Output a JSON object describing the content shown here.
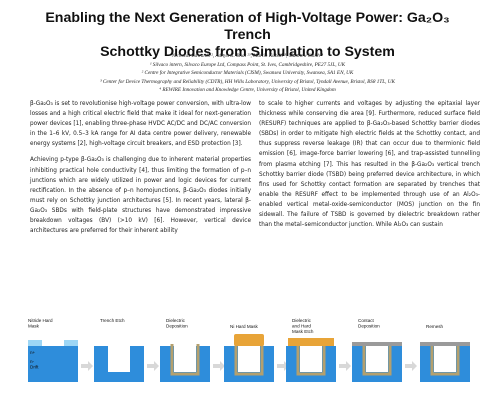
{
  "paper": {
    "title_line1": "Enabling the Next Generation of High-Voltage Power: Ga₂O₃ Trench",
    "title_line2": "Schottky Diodes from Simulation to System",
    "authors": "Nicholas Edwards¹², Aditya K. Bhat ²³, Martin Kuball²³, Matthew Smith²⁴",
    "affiliations": [
      "¹ Silvaco intern, Silvaco Europe Ltd, Compass Point, St. Ives, Cambridgeshire, PE27 5JL, UK",
      "² Centre for Integrative Semiconductor Materials (CISM), Swansea University, Swansea, SA1 EN, UK",
      "³ Center for Device Thermography and Reliability (CDTR), HH Wills Laboratory, University of Bristol, Tyndall Avenue, Bristol, BS8 1TL, UK",
      "⁴ REWIRE Innovation and Knowledge Centre, University of Bristol, United Kingdom"
    ],
    "left_column": [
      "β-Ga₂O₃ is set to revolutionise high-voltage power conversion, with ultra-low losses and a high critical electric field that make it ideal for next-generation power devices [1], enabling three-phase HVDC AC/DC and DC/AC conversion in the 1–6 kV, 0.5–3 kA range for AI data centre power delivery, renewable energy systems [2], high-voltage circuit breakers, and ESD protection [3].",
      "Achieving p-type β-Ga₂O₃ is challenging due to inherent material properties inhibiting practical hole conductivity [4], thus limiting the formation of p–n junctions which are widely utilized in power and logic devices for current rectification. In the absence of p–n homojunctions, β-Ga₂O₃ diodes initially must rely on Schottky junction architectures [5]. In recent years, lateral β-Ga₂O₃ SBDs with field-plate structures have demonstrated impressive breakdown voltages (BV) (>10 kV) [6]. However, vertical device architectures are preferred for their inherent ability"
    ],
    "right_column": [
      "to scale to higher currents and voltages by adjusting the epitaxial layer thickness while conserving die area [9]. Furthermore, reduced surface field (RESURF) techniques are applied to β-Ga₂O₃-based Schottky barrier diodes (SBDs) in order to mitigate high electric fields at the Schottky contact, and thus suppress reverse leakage (IR) that can occur due to thermionic field emission [6], image-force barrier lowering [6], and trap-assisted tunnelling from plasma etching [7]. This has resulted in the β-Ga₂O₃ vertical trench Schottky barrier diode (TSBD) being preferred device architecture, in which fins used for Schottky contact formation are separated by trenches that enable the RESURF effect to be implemented through use of an Al₂O₃-enabled vertical metal-oxide-semiconductor (MOS) junction on the fin sidewall. The failure of TSBD is governed by dielectric breakdown rather than the metal–semiconductor junction. While Al₂O₃ can sustain"
    ]
  },
  "figure": {
    "steps": [
      "Nitride Hard Mask",
      "Trench Etch",
      "Dielectric Deposition",
      "Ni Hard Mask",
      "Dielectric and Hard Mask Etch",
      "Contact Deposition",
      "Remesh"
    ],
    "layer_labels": {
      "n_plus": "n+",
      "drift": "n-\nDrift"
    },
    "colors": {
      "substrate": "#2e8ddb",
      "nitride": "#9dd6f5",
      "dielectric": "#b4a06e",
      "ni_mask": "#e8a438",
      "contact": "#9a9a9a",
      "arrow": "#d8d8d8"
    }
  }
}
